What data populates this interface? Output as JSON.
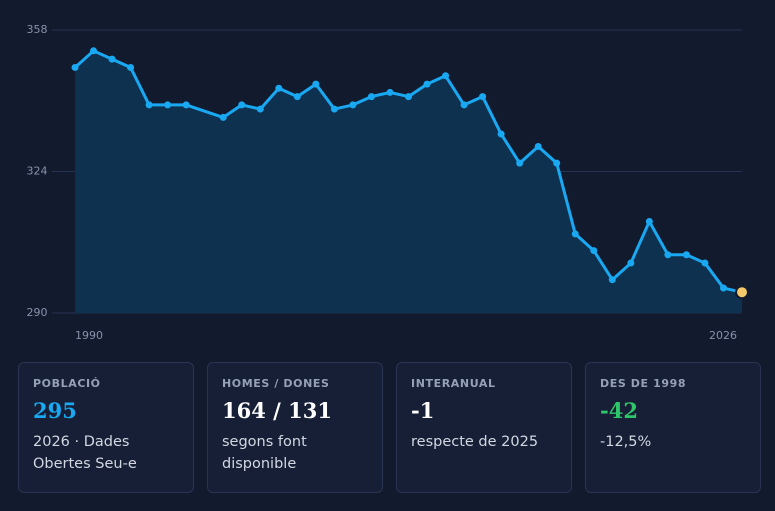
{
  "chart_data": {
    "type": "area-line",
    "x": [
      1990,
      1991,
      1992,
      1993,
      1994,
      1995,
      1996,
      1998,
      1999,
      2000,
      2001,
      2002,
      2003,
      2004,
      2005,
      2006,
      2007,
      2008,
      2009,
      2010,
      2011,
      2012,
      2013,
      2014,
      2015,
      2016,
      2017,
      2018,
      2019,
      2020,
      2021,
      2022,
      2023,
      2024,
      2025,
      2026
    ],
    "values": [
      349,
      353,
      351,
      349,
      340,
      340,
      340,
      337,
      340,
      339,
      344,
      342,
      345,
      339,
      340,
      342,
      343,
      342,
      345,
      347,
      340,
      342,
      333,
      326,
      330,
      326,
      309,
      305,
      298,
      302,
      312,
      304,
      304,
      302,
      296,
      295
    ],
    "color": "#19a8f2",
    "area_color": "#0f3150",
    "highlight_color": "#f5c96a",
    "xlim": [
      1990,
      2026
    ],
    "xticks": [
      1990,
      2026
    ],
    "ylim": [
      290,
      358
    ],
    "yticks": [
      290,
      324,
      358
    ],
    "grid": true
  },
  "cards": [
    {
      "label": "POBLACIÓ",
      "value": "295",
      "color": "#19a8f2",
      "note": "2026 · Dades Obertes Seu-e"
    },
    {
      "label": "HOMES / DONES",
      "value": "164 / 131",
      "color": "#ffffff",
      "note": "segons font disponible"
    },
    {
      "label": "INTERANUAL",
      "value": "-1",
      "color": "#ffffff",
      "note": "respecte de 2025"
    },
    {
      "label": "DES DE 1998",
      "value": "-42",
      "color": "#2ec66b",
      "note": "-12,5%"
    }
  ]
}
